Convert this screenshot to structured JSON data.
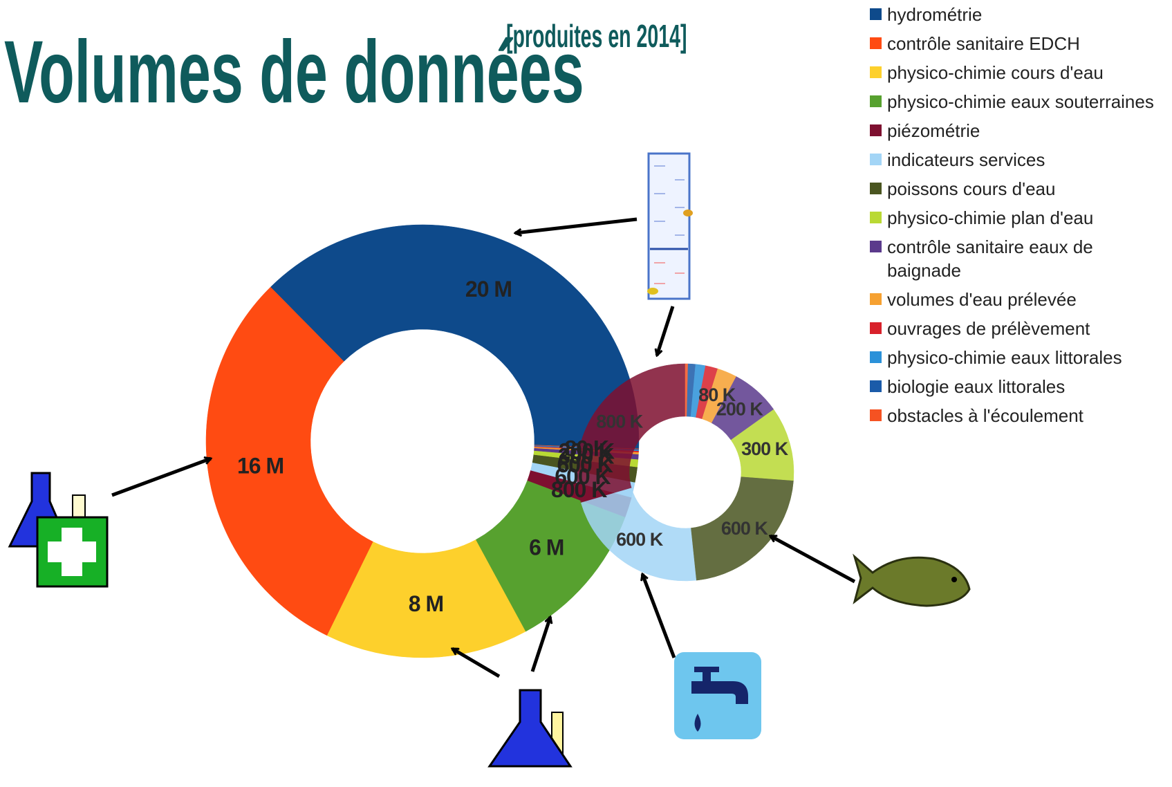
{
  "chart_data": {
    "type": "donut",
    "title": "Volumes de données",
    "subtitle": "[produites en 2014]",
    "categories": [
      "hydrométrie",
      "contrôle sanitaire EDCH",
      "physico-chimie cours d'eau",
      "physico-chimie eaux souterraines",
      "piézométrie",
      "indicateurs services",
      "poissons cours d'eau",
      "physico-chimie plan d'eau",
      "contrôle sanitaire eaux de baignade",
      "volumes d'eau prélevée",
      "ouvrages de prélèvement",
      "physico-chimie eaux littorales",
      "biologie eaux littorales",
      "obstacles à l'écoulement"
    ],
    "colors": [
      "#0e4a8b",
      "#ff4b12",
      "#fdd02c",
      "#57a12f",
      "#7e1030",
      "#a3d5f6",
      "#4a5520",
      "#b9d934",
      "#5b3a8c",
      "#f6a131",
      "#d8212b",
      "#2b91d9",
      "#1b5ba9",
      "#f55222"
    ],
    "values": [
      20000000,
      16000000,
      8000000,
      6000000,
      800000,
      600000,
      600000,
      300000,
      200000,
      80000,
      50000,
      40000,
      30000,
      10000
    ],
    "value_labels": [
      "20 M",
      "16 M",
      "8 M",
      "6 M",
      "800 K",
      "600 K",
      "600 K",
      "300 K",
      "200 K",
      "80 K",
      null,
      null,
      null,
      null
    ]
  }
}
